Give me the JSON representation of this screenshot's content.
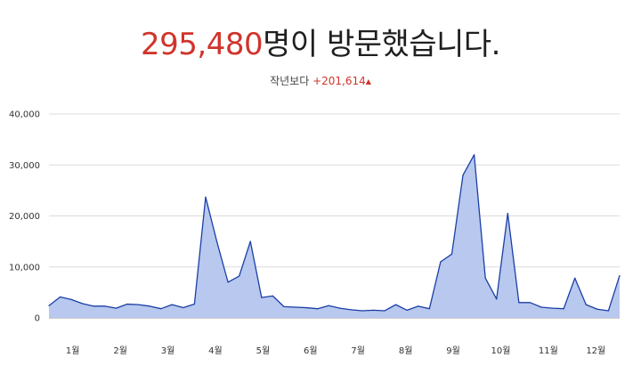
{
  "header": {
    "visitor_count": "295,480",
    "visitor_suffix": "명이 방문했습니다.",
    "compare_label": "작년보다",
    "compare_delta": "+201,614",
    "compare_arrow": "▲"
  },
  "colors": {
    "accent_red": "#d0342c",
    "line": "#1a3fa6",
    "area": "#b8c8ee",
    "grid": "#dcdcdc"
  },
  "chart_data": {
    "type": "area",
    "title": "",
    "xlabel": "",
    "ylabel": "",
    "ylim": [
      0,
      40000
    ],
    "grid": true,
    "y_ticks": [
      0,
      10000,
      20000,
      30000,
      40000
    ],
    "y_tick_labels": [
      "0",
      "10,000",
      "20,000",
      "30,000",
      "40,000"
    ],
    "x_ticks": [
      1.5,
      2.5,
      3.5,
      4.5,
      5.5,
      6.5,
      7.5,
      8.5,
      9.5,
      10.5,
      11.5,
      12.5
    ],
    "x_tick_labels": [
      "1월",
      "2월",
      "3월",
      "4월",
      "5월",
      "6월",
      "7월",
      "8월",
      "9월",
      "10월",
      "11월",
      "12월"
    ],
    "xlim": [
      1,
      13
    ],
    "series": [
      {
        "values": [
          2400,
          4100,
          3600,
          2800,
          2300,
          2300,
          1900,
          2700,
          2600,
          2300,
          1800,
          2600,
          2000,
          2700,
          23700,
          15000,
          7000,
          8200,
          15000,
          4000,
          4300,
          2200,
          2100,
          2000,
          1800,
          2400,
          1900,
          1600,
          1400,
          1500,
          1400,
          2600,
          1500,
          2300,
          1800,
          11000,
          12500,
          28000,
          32000,
          7800,
          3700,
          20500,
          3000,
          3000,
          2100,
          1900,
          1800,
          7800,
          2600,
          1700,
          1400,
          8300
        ]
      }
    ]
  }
}
